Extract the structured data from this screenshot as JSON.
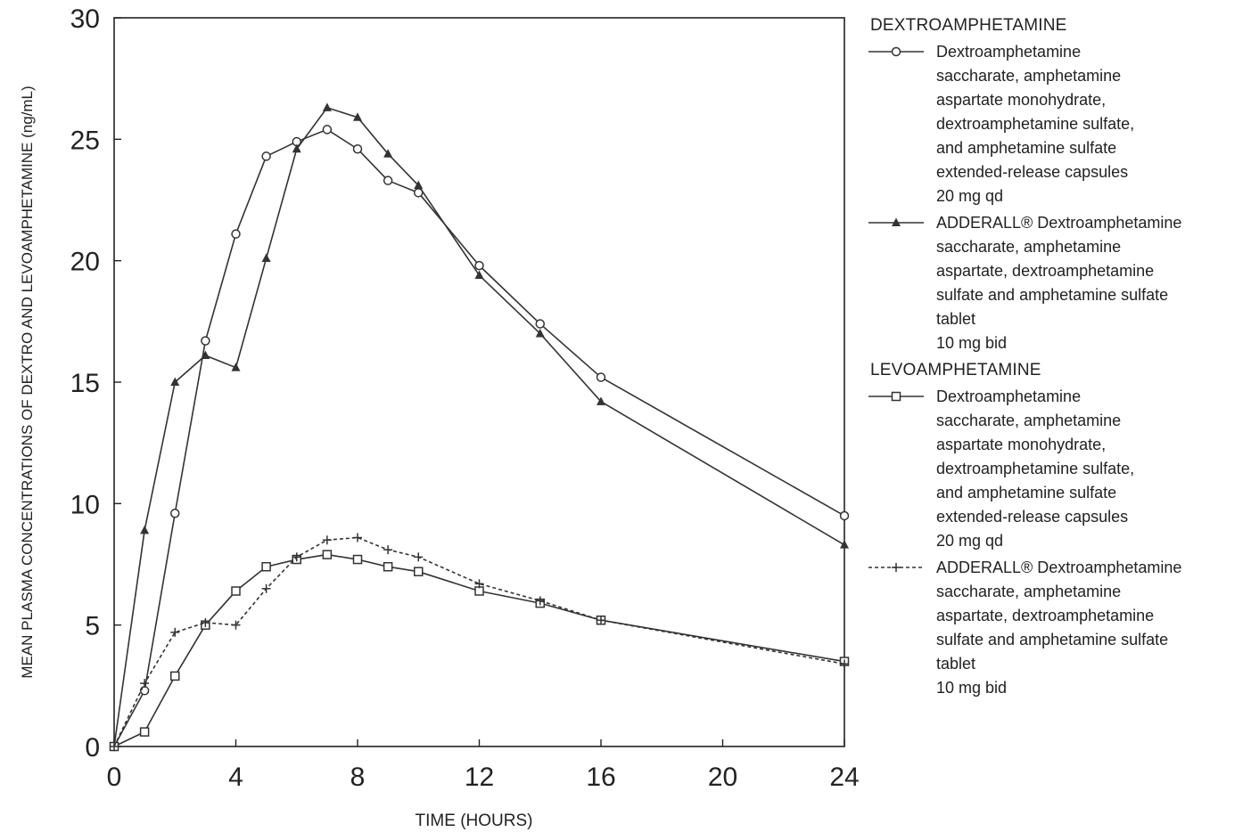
{
  "chart_data": {
    "type": "line",
    "xlabel": "TIME (HOURS)",
    "ylabel": "MEAN PLASMA CONCENTRATIONS OF DEXTRO AND LEVOAMPHETAMINE (ng/mL)",
    "xlim": [
      0,
      24
    ],
    "ylim": [
      0,
      30
    ],
    "x_ticks": [
      0,
      4,
      8,
      12,
      16,
      20,
      24
    ],
    "y_ticks": [
      0,
      5,
      10,
      15,
      20,
      25,
      30
    ],
    "grid": false,
    "legend_position": "right",
    "series": [
      {
        "id": "dextro_xr",
        "group": "DEXTROAMPHETAMINE",
        "name": "Dextroamphetamine\nsaccharate, amphetamine\naspartate monohydrate,\ndextroamphetamine sulfate,\nand amphetamine sulfate\nextended-release capsules\n20 mg qd",
        "marker": "circle-open",
        "line": "solid",
        "x": [
          0,
          1,
          2,
          3,
          4,
          5,
          6,
          7,
          8,
          9,
          10,
          12,
          14,
          16,
          24
        ],
        "y": [
          0,
          2.3,
          9.6,
          16.7,
          21.1,
          24.3,
          24.9,
          25.4,
          24.6,
          23.3,
          22.8,
          19.8,
          17.4,
          15.2,
          9.5
        ]
      },
      {
        "id": "dextro_ir",
        "group": "DEXTROAMPHETAMINE",
        "name": "ADDERALL® Dextroamphetamine\nsaccharate, amphetamine\naspartate, dextroamphetamine\nsulfate and amphetamine sulfate\ntablet\n10 mg bid",
        "marker": "triangle-filled",
        "line": "solid",
        "x": [
          0,
          1,
          2,
          3,
          4,
          5,
          6,
          7,
          8,
          9,
          10,
          12,
          14,
          16,
          24
        ],
        "y": [
          0,
          8.9,
          15.0,
          16.1,
          15.6,
          20.1,
          24.6,
          26.3,
          25.9,
          24.4,
          23.1,
          19.4,
          17.0,
          14.2,
          8.3
        ]
      },
      {
        "id": "levo_xr",
        "group": "LEVOAMPHETAMINE",
        "name": "Dextroamphetamine\nsaccharate, amphetamine\naspartate monohydrate,\ndextroamphetamine sulfate,\nand amphetamine sulfate\nextended-release capsules\n20 mg qd",
        "marker": "square-open",
        "line": "solid",
        "x": [
          0,
          1,
          2,
          3,
          4,
          5,
          6,
          7,
          8,
          9,
          10,
          12,
          14,
          16,
          24
        ],
        "y": [
          0,
          0.6,
          2.9,
          5.0,
          6.4,
          7.4,
          7.7,
          7.9,
          7.7,
          7.4,
          7.2,
          6.4,
          5.9,
          5.2,
          3.5
        ]
      },
      {
        "id": "levo_ir",
        "group": "LEVOAMPHETAMINE",
        "name": "ADDERALL® Dextroamphetamine\nsaccharate, amphetamine\naspartate, dextroamphetamine\nsulfate and amphetamine sulfate\ntablet\n10 mg bid",
        "marker": "plus",
        "line": "dashed",
        "x": [
          0,
          1,
          2,
          3,
          4,
          5,
          6,
          7,
          8,
          9,
          10,
          12,
          14,
          16,
          24
        ],
        "y": [
          0,
          2.6,
          4.7,
          5.1,
          5.0,
          6.5,
          7.8,
          8.5,
          8.6,
          8.1,
          7.8,
          6.7,
          6.0,
          5.2,
          3.4
        ]
      }
    ],
    "legend_groups": [
      {
        "title": "DEXTROAMPHETAMINE",
        "series": [
          "dextro_xr",
          "dextro_ir"
        ]
      },
      {
        "title": "LEVOAMPHETAMINE",
        "series": [
          "levo_xr",
          "levo_ir"
        ]
      }
    ],
    "colors": {
      "line": "#333333",
      "axis": "#222222",
      "background": "#ffffff"
    }
  }
}
